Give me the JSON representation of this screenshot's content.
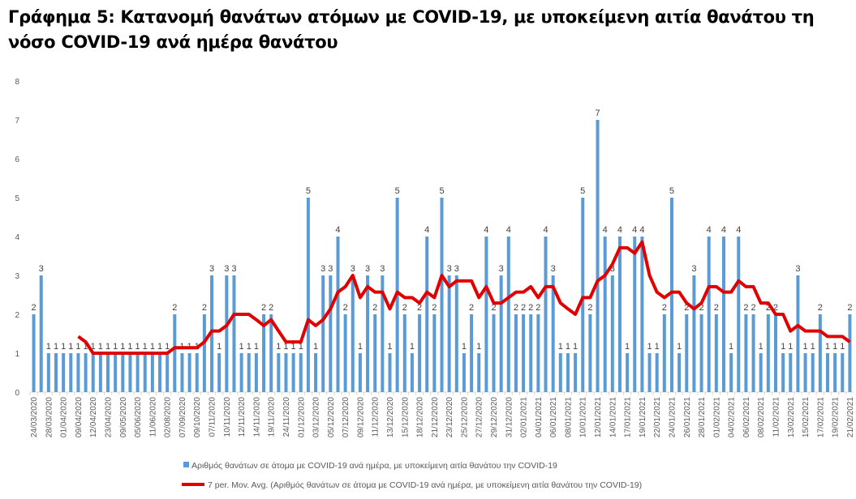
{
  "chart_data": {
    "type": "bar_line",
    "title": "Γράφημα 5: Κατανομή θανάτων ατόμων με COVID-19, με υποκείμενη αιτία θανάτου τη νόσο COVID-19 ανά ημέρα θανάτου",
    "categories": [
      "24/03/2020",
      null,
      "28/03/2020",
      null,
      "01/04/2020",
      null,
      "09/04/2020",
      null,
      "12/04/2020",
      null,
      "23/04/2020",
      null,
      "09/05/2020",
      null,
      "05/06/2020",
      null,
      "11/06/2020",
      null,
      "02/08/2020",
      null,
      "07/09/2020",
      null,
      "09/10/2020",
      null,
      "07/11/2020",
      null,
      "10/11/2020",
      null,
      "12/11/2020",
      null,
      "14/11/2020",
      null,
      "19/11/2020",
      null,
      "24/11/2020",
      null,
      "01/12/2020",
      null,
      "03/12/2020",
      null,
      "05/12/2020",
      null,
      "07/12/2020",
      null,
      "09/12/2020",
      null,
      "11/12/2020",
      null,
      "13/12/2020",
      null,
      "15/12/2020",
      null,
      "18/12/2020",
      null,
      "21/12/2020",
      null,
      "23/12/2020",
      null,
      "25/12/2020",
      null,
      "27/12/2020",
      null,
      "29/12/2020",
      null,
      "31/12/2020",
      null,
      "02/01/2021",
      null,
      "04/01/2021",
      null,
      "06/01/2021",
      null,
      "08/01/2021",
      null,
      "10/01/2021",
      null,
      "12/01/2021",
      null,
      "14/01/2021",
      null,
      "17/01/2021",
      null,
      "19/01/2021",
      null,
      "22/01/2021",
      null,
      "24/01/2021",
      null,
      "26/01/2021",
      null,
      "28/01/2021",
      null,
      "01/02/2021",
      null,
      "04/02/2021",
      null,
      "06/02/2021",
      null,
      "08/02/2021",
      null,
      "11/02/2021",
      null,
      "13/02/2021",
      null,
      "15/02/2021",
      null,
      "17/02/2021",
      null,
      "19/02/2021",
      null,
      "21/02/2021"
    ],
    "series": [
      {
        "name": "Αριθμός θανάτων σε άτομα με COVID-19 ανά ημέρα, με υποκείμενη αιτία θανάτου την COVID-19",
        "kind": "bar",
        "color": "#5b9bd5",
        "values": [
          2,
          3,
          1,
          1,
          1,
          1,
          1,
          1,
          1,
          1,
          1,
          1,
          1,
          1,
          1,
          1,
          1,
          1,
          1,
          2,
          1,
          1,
          1,
          2,
          3,
          1,
          3,
          3,
          1,
          1,
          1,
          2,
          2,
          1,
          1,
          1,
          1,
          5,
          1,
          3,
          3,
          4,
          2,
          3,
          1,
          3,
          2,
          3,
          1,
          5,
          2,
          1,
          2,
          4,
          2,
          5,
          3,
          3,
          1,
          2,
          1,
          4,
          2,
          3,
          4,
          2,
          2,
          2,
          2,
          4,
          3,
          1,
          1,
          1,
          5,
          2,
          7,
          4,
          3,
          4,
          1,
          4,
          4,
          1,
          1,
          2,
          5,
          1,
          2,
          3,
          2,
          4,
          2,
          4,
          1,
          4,
          2,
          2,
          1,
          2,
          2,
          1,
          1,
          3,
          1,
          1,
          2,
          1,
          1,
          1,
          2
        ]
      },
      {
        "name": "7 per. Mov. Avg. (Αριθμός θανάτων σε άτομα με COVID-19 ανά ημέρα, με υποκείμενη αιτία θανάτου την COVID-19)",
        "kind": "line",
        "color": "#e00000",
        "values": [
          null,
          null,
          null,
          null,
          null,
          null,
          1.43,
          1.29,
          1,
          1,
          1,
          1,
          1,
          1,
          1,
          1,
          1,
          1,
          1,
          1.14,
          1.14,
          1.14,
          1.14,
          1.29,
          1.57,
          1.57,
          1.71,
          2,
          2,
          2,
          1.86,
          1.71,
          1.86,
          1.57,
          1.29,
          1.29,
          1.29,
          1.86,
          1.71,
          1.86,
          2.14,
          2.57,
          2.71,
          3,
          2.43,
          2.71,
          2.57,
          2.57,
          2.14,
          2.57,
          2.43,
          2.43,
          2.29,
          2.57,
          2.43,
          3,
          2.71,
          2.86,
          2.86,
          2.86,
          2.43,
          2.71,
          2.29,
          2.29,
          2.43,
          2.57,
          2.57,
          2.71,
          2.43,
          2.71,
          2.71,
          2.29,
          2.14,
          2,
          2.43,
          2.43,
          2.86,
          3,
          3.29,
          3.71,
          3.71,
          3.57,
          3.86,
          3,
          2.57,
          2.43,
          2.57,
          2.57,
          2.29,
          2.14,
          2.29,
          2.71,
          2.71,
          2.57,
          2.57,
          2.86,
          2.71,
          2.71,
          2.29,
          2.29,
          2,
          2,
          1.57,
          1.71,
          1.57,
          1.57,
          1.57,
          1.43,
          1.43,
          1.43,
          1.29
        ]
      }
    ],
    "ylim": [
      0,
      8
    ],
    "yticks": [
      0,
      1,
      2,
      3,
      4,
      5,
      6,
      7,
      8
    ],
    "grid": false,
    "legend": "bottom"
  }
}
